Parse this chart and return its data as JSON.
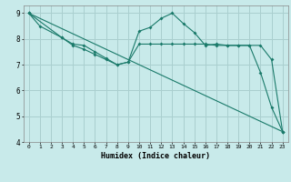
{
  "title": "",
  "xlabel": "Humidex (Indice chaleur)",
  "background_color": "#c8eaea",
  "grid_color": "#aacfcf",
  "line_color": "#1a7a6a",
  "xlim": [
    -0.5,
    23.5
  ],
  "ylim": [
    4,
    9.3
  ],
  "xticks": [
    0,
    1,
    2,
    3,
    4,
    5,
    6,
    7,
    8,
    9,
    10,
    11,
    12,
    13,
    14,
    15,
    16,
    17,
    18,
    19,
    20,
    21,
    22,
    23
  ],
  "yticks": [
    4,
    5,
    6,
    7,
    8,
    9
  ],
  "line1_x": [
    0,
    1,
    3,
    4,
    5,
    6,
    7,
    8,
    9,
    10,
    11,
    12,
    13,
    14,
    15,
    16,
    17,
    18,
    19,
    20,
    21,
    22,
    23
  ],
  "line1_y": [
    9.0,
    8.5,
    8.05,
    7.75,
    7.6,
    7.4,
    7.2,
    7.0,
    7.1,
    8.3,
    8.45,
    8.8,
    9.0,
    8.6,
    8.25,
    7.75,
    7.8,
    7.75,
    7.75,
    7.75,
    6.7,
    5.35,
    4.4
  ],
  "line2_x": [
    0,
    3,
    4,
    5,
    6,
    7,
    8,
    9,
    10,
    11,
    12,
    13,
    14,
    15,
    16,
    17,
    18,
    19,
    20,
    21,
    22,
    23
  ],
  "line2_y": [
    9.0,
    8.05,
    7.8,
    7.75,
    7.5,
    7.25,
    7.0,
    7.1,
    7.8,
    7.8,
    7.8,
    7.8,
    7.8,
    7.8,
    7.8,
    7.75,
    7.75,
    7.75,
    7.75,
    7.75,
    7.2,
    4.4
  ],
  "line3_x": [
    0,
    23
  ],
  "line3_y": [
    9.0,
    4.4
  ]
}
